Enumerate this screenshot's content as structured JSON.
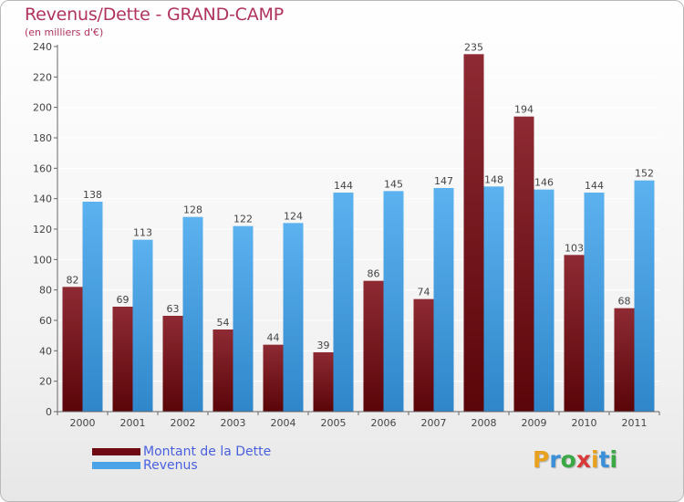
{
  "header": {
    "title": "Revenus/Dette - GRAND-CAMP",
    "subtitle": "(en milliers d'€)"
  },
  "colors": {
    "debt": "#8b1e2a",
    "revenue": "#3f9ee2",
    "axis": "#666666",
    "grid": "#ffffff",
    "label": "#444444"
  },
  "chart_data": {
    "type": "bar",
    "categories": [
      "2000",
      "2001",
      "2002",
      "2003",
      "2004",
      "2005",
      "2006",
      "2007",
      "2008",
      "2009",
      "2010",
      "2011"
    ],
    "series": [
      {
        "name": "Montant de la Dette",
        "values": [
          82,
          69,
          63,
          54,
          44,
          39,
          86,
          74,
          235,
          194,
          103,
          68
        ]
      },
      {
        "name": "Revenus",
        "values": [
          138,
          113,
          128,
          122,
          124,
          144,
          145,
          147,
          148,
          146,
          144,
          152
        ]
      }
    ],
    "ylim": [
      0,
      240
    ],
    "yticks": [
      0,
      20,
      40,
      60,
      80,
      100,
      120,
      140,
      160,
      180,
      200,
      220,
      240
    ],
    "grid": true,
    "legend": "bottom-left"
  },
  "legend": {
    "items": [
      {
        "label": "Montant de la Dette",
        "color": "#6e0b12"
      },
      {
        "label": "Revenus",
        "color": "#4aa3e6"
      }
    ]
  },
  "logo": {
    "letters": [
      "P",
      "r",
      "o",
      "x",
      "i",
      "t",
      "i"
    ],
    "colors": [
      "#e8a21f",
      "#3a8fd8",
      "#3aa845",
      "#d83a3a",
      "#e8a21f",
      "#3a8fd8",
      "#3aa845"
    ]
  }
}
